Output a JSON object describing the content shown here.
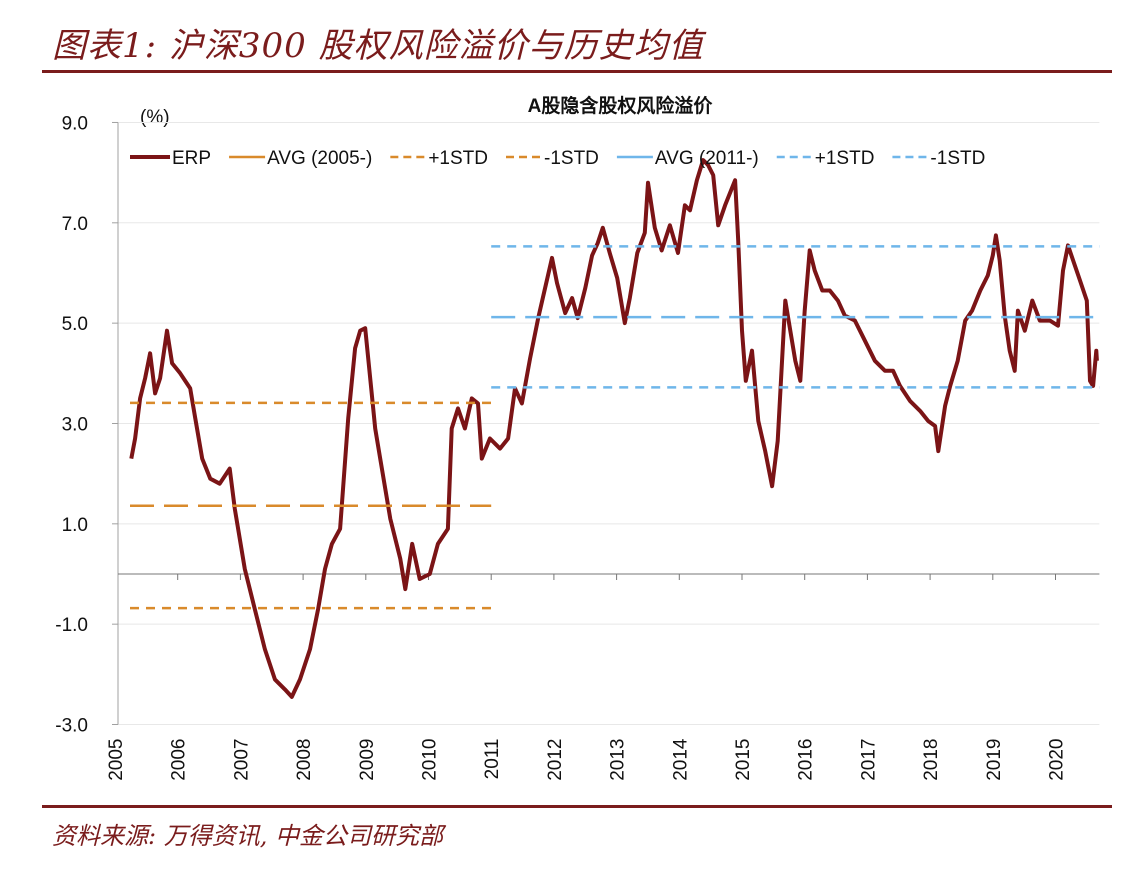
{
  "figure_title": "图表1: 沪深300 股权风险溢价与历史均值",
  "source": "资料来源:   万得资讯, 中金公司研究部",
  "chart_data": {
    "type": "line",
    "title": "A股隐含股权风险溢价",
    "ylabel": "(%)",
    "xlabel": "",
    "ylim": [
      -3.0,
      9.0
    ],
    "yticks": [
      "9.0",
      "7.0",
      "5.0",
      "3.0",
      "1.0",
      "-1.0",
      "-3.0"
    ],
    "ytick_values": [
      9,
      7,
      5,
      3,
      1,
      -1,
      -3
    ],
    "xlim": [
      2005,
      2020.7
    ],
    "xticks": [
      "2005",
      "2006",
      "2007",
      "2008",
      "2009",
      "2010",
      "2011",
      "2012",
      "2013",
      "2014",
      "2015",
      "2016",
      "2017",
      "2018",
      "2019",
      "2020"
    ],
    "grid": true,
    "legend_position": "top",
    "colors": {
      "erp": "#7b1416",
      "avg2005": "#d98a2b",
      "avg2011": "#6fb6ea",
      "axis": "#a0a0a0",
      "grid": "#e8e8e8",
      "title_red": "#7a1c1c"
    },
    "series": [
      {
        "name": "ERP",
        "style": "solid",
        "color": "#7b1416",
        "x": [
          2005.26,
          2005.32,
          2005.4,
          2005.48,
          2005.56,
          2005.64,
          2005.72,
          2005.83,
          2005.91,
          2006.04,
          2006.2,
          2006.28,
          2006.39,
          2006.52,
          2006.67,
          2006.83,
          2006.91,
          2007.07,
          2007.23,
          2007.39,
          2007.55,
          2007.71,
          2007.82,
          2007.95,
          2008.11,
          2008.24,
          2008.35,
          2008.46,
          2008.59,
          2008.72,
          2008.83,
          2008.91,
          2008.99,
          2009.07,
          2009.15,
          2009.23,
          2009.39,
          2009.55,
          2009.63,
          2009.74,
          2009.86,
          2010.02,
          2010.15,
          2010.31,
          2010.37,
          2010.47,
          2010.58,
          2010.69,
          2010.79,
          2010.85,
          2010.98,
          2011.14,
          2011.27,
          2011.38,
          2011.49,
          2011.62,
          2011.75,
          2011.86,
          2011.97,
          2012.05,
          2012.18,
          2012.29,
          2012.38,
          2012.5,
          2012.61,
          2012.7,
          2012.78,
          2012.89,
          2013.01,
          2013.13,
          2013.21,
          2013.33,
          2013.45,
          2013.5,
          2013.61,
          2013.72,
          2013.85,
          2013.98,
          2014.09,
          2014.17,
          2014.28,
          2014.38,
          2014.46,
          2014.54,
          2014.62,
          2014.73,
          2014.89,
          2014.94,
          2015.0,
          2015.06,
          2015.16,
          2015.26,
          2015.37,
          2015.48,
          2015.57,
          2015.69,
          2015.77,
          2015.85,
          2015.93,
          2016.0,
          2016.08,
          2016.16,
          2016.28,
          2016.4,
          2016.53,
          2016.64,
          2016.8,
          2016.96,
          2017.12,
          2017.28,
          2017.41,
          2017.52,
          2017.68,
          2017.84,
          2017.97,
          2018.08,
          2018.13,
          2018.24,
          2018.32,
          2018.44,
          2018.56,
          2018.67,
          2018.8,
          2018.92,
          2019.0,
          2019.05,
          2019.11,
          2019.19,
          2019.27,
          2019.35,
          2019.4,
          2019.51,
          2019.63,
          2019.75,
          2019.91,
          2020.04,
          2020.12,
          2020.2,
          2020.28,
          2020.39,
          2020.5,
          2020.55,
          2020.6,
          2020.65,
          2020.66
        ],
        "y": [
          2.3,
          2.7,
          3.5,
          3.9,
          4.4,
          3.6,
          3.9,
          4.85,
          4.2,
          4.0,
          3.7,
          3.1,
          2.3,
          1.9,
          1.8,
          2.1,
          1.3,
          0.1,
          -0.7,
          -1.5,
          -2.1,
          -2.3,
          -2.45,
          -2.1,
          -1.5,
          -0.7,
          0.1,
          0.6,
          0.9,
          3.1,
          4.5,
          4.85,
          4.9,
          3.9,
          2.9,
          2.3,
          1.1,
          0.3,
          -0.3,
          0.6,
          -0.1,
          0.0,
          0.6,
          0.9,
          2.9,
          3.3,
          2.9,
          3.5,
          3.4,
          2.3,
          2.7,
          2.5,
          2.7,
          3.7,
          3.4,
          4.3,
          5.1,
          5.7,
          6.3,
          5.8,
          5.2,
          5.5,
          5.1,
          5.7,
          6.35,
          6.6,
          6.9,
          6.4,
          5.9,
          5.0,
          5.5,
          6.4,
          6.8,
          7.8,
          6.9,
          6.45,
          6.95,
          6.4,
          7.35,
          7.25,
          7.85,
          8.25,
          8.15,
          7.95,
          6.95,
          7.35,
          7.85,
          6.65,
          4.85,
          3.85,
          4.45,
          3.05,
          2.45,
          1.75,
          2.65,
          5.45,
          4.85,
          4.25,
          3.85,
          5.25,
          6.45,
          6.05,
          5.65,
          5.65,
          5.45,
          5.15,
          5.05,
          4.65,
          4.25,
          4.05,
          4.05,
          3.75,
          3.45,
          3.25,
          3.05,
          2.95,
          2.45,
          3.35,
          3.75,
          4.25,
          5.05,
          5.25,
          5.65,
          5.95,
          6.35,
          6.75,
          6.25,
          5.15,
          4.45,
          4.05,
          5.25,
          4.85,
          5.45,
          5.05,
          5.05,
          4.95,
          6.05,
          6.55,
          6.25,
          5.85,
          5.45,
          3.85,
          3.75,
          4.45,
          4.25
        ]
      },
      {
        "name": "AVG (2005-)",
        "style": "longdash",
        "color": "#d98a2b",
        "x": [
          2005.24,
          2011.0
        ],
        "y": [
          1.36,
          1.36
        ]
      },
      {
        "name": "+1STD",
        "style": "dash",
        "color": "#d98a2b",
        "x": [
          2005.24,
          2011.0
        ],
        "y": [
          3.41,
          3.41
        ]
      },
      {
        "name": "-1STD",
        "style": "dash",
        "color": "#d98a2b",
        "x": [
          2005.24,
          2011.0
        ],
        "y": [
          -0.68,
          -0.68
        ]
      },
      {
        "name": "AVG (2011-)",
        "style": "longdash",
        "color": "#6fb6ea",
        "x": [
          2011.0,
          2020.7
        ],
        "y": [
          5.12,
          5.12
        ]
      },
      {
        "name": "+1STD",
        "style": "dash",
        "color": "#6fb6ea",
        "x": [
          2011.0,
          2020.7
        ],
        "y": [
          6.53,
          6.53
        ]
      },
      {
        "name": "-1STD",
        "style": "dash",
        "color": "#6fb6ea",
        "x": [
          2011.0,
          2020.7
        ],
        "y": [
          3.72,
          3.72
        ]
      }
    ]
  }
}
